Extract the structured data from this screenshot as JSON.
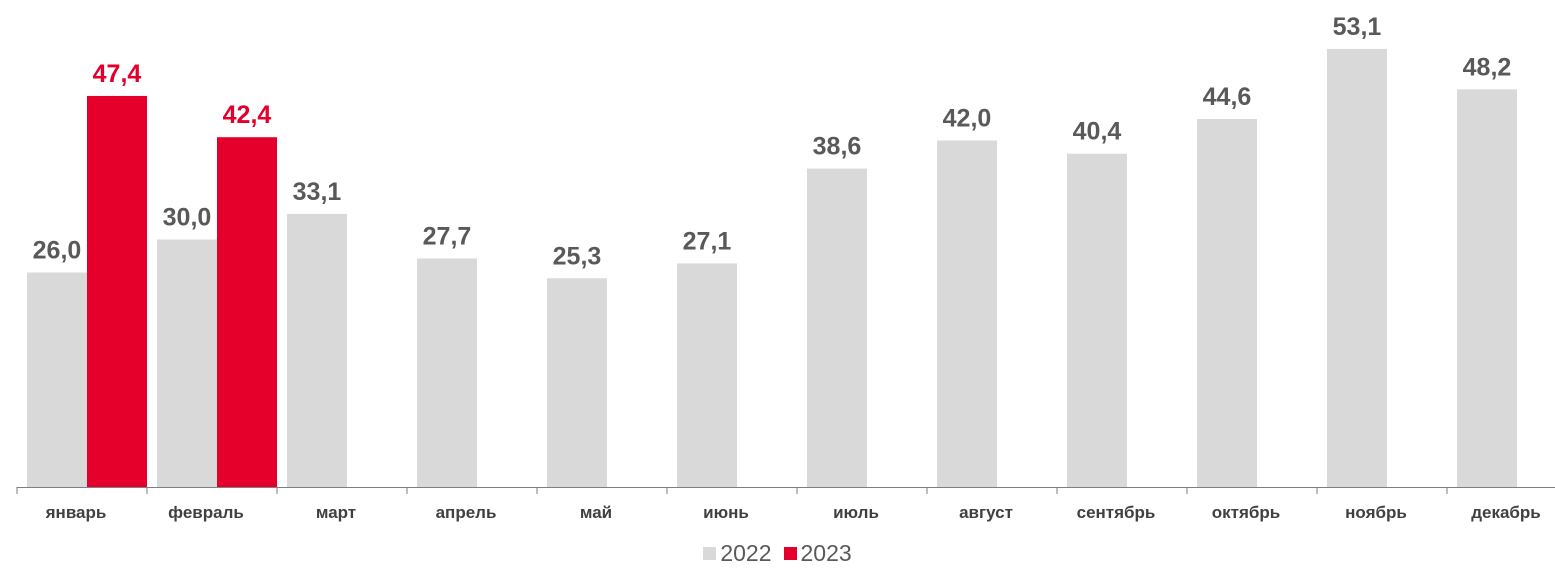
{
  "chart_data": {
    "type": "bar",
    "categories": [
      "январь",
      "февраль",
      "март",
      "апрель",
      "май",
      "июнь",
      "июль",
      "август",
      "сентябрь",
      "октябрь",
      "ноябрь",
      "декабрь"
    ],
    "series": [
      {
        "name": "2022",
        "color": "#d9d9d9",
        "label_color": "#595959",
        "values": [
          26.0,
          30.0,
          33.1,
          27.7,
          25.3,
          27.1,
          38.6,
          42.0,
          40.4,
          44.6,
          53.1,
          48.2
        ],
        "labels": [
          "26,0",
          "30,0",
          "33,1",
          "27,7",
          "25,3",
          "27,1",
          "38,6",
          "42,0",
          "40,4",
          "44,6",
          "53,1",
          "48,2"
        ]
      },
      {
        "name": "2023",
        "color": "#e4002b",
        "label_color": "#e4002b",
        "values": [
          47.4,
          42.4,
          null,
          null,
          null,
          null,
          null,
          null,
          null,
          null,
          null,
          null
        ],
        "labels": [
          "47,4",
          "42,4",
          "",
          "",
          "",
          "",
          "",
          "",
          "",
          "",
          "",
          ""
        ]
      }
    ],
    "ylim": [
      0,
      55
    ],
    "grid": false,
    "legend_position": "bottom-center"
  }
}
